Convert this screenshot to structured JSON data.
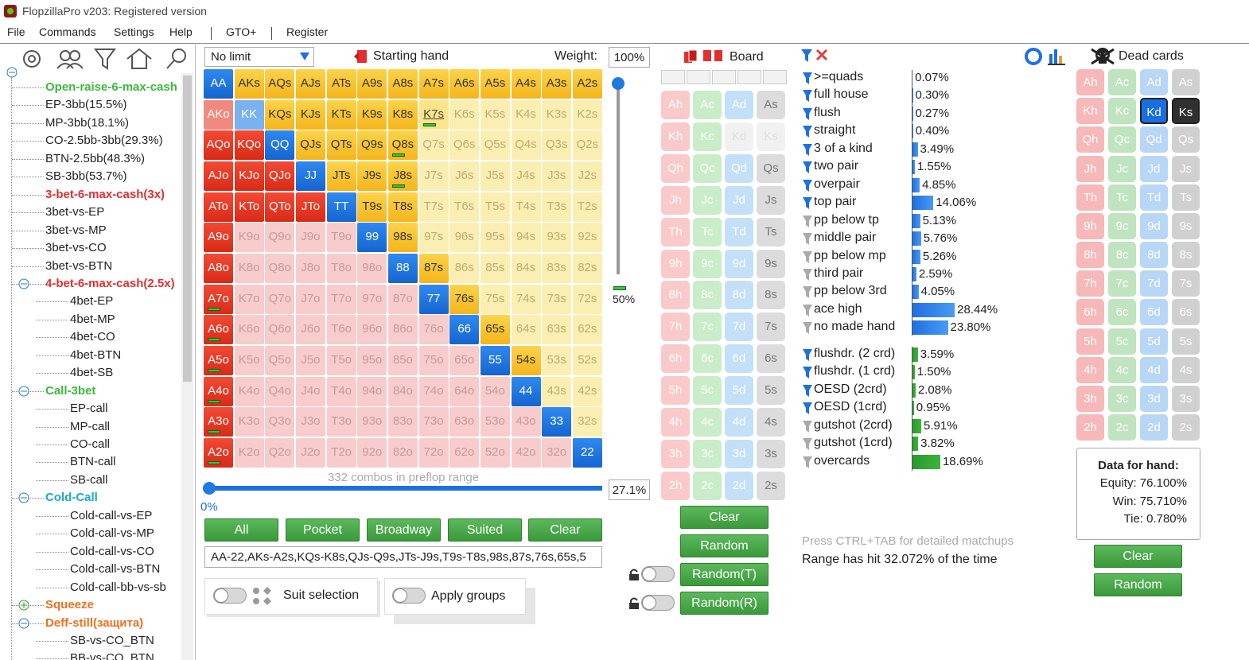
{
  "window": {
    "title": "FlopzillaPro v203: Registered version"
  },
  "menu": [
    "File",
    "Commands",
    "Settings",
    "Help",
    "GTO+",
    "Register"
  ],
  "tree": {
    "items": [
      {
        "label": "Open-raise-6-max-cash",
        "level": 1,
        "color": "#3cb93c",
        "bold": true,
        "expander": null
      },
      {
        "label": "EP-3bb(15.5%)",
        "level": 1,
        "color": "#222222",
        "bold": false,
        "expander": null
      },
      {
        "label": "MP-3bb(18.1%)",
        "level": 1,
        "color": "#222222",
        "bold": false,
        "expander": null
      },
      {
        "label": "CO-2.5bb-3bb(29.3%)",
        "level": 1,
        "color": "#222222",
        "bold": false,
        "expander": null
      },
      {
        "label": "BTN-2.5bb(48.3%)",
        "level": 1,
        "color": "#222222",
        "bold": false,
        "expander": null
      },
      {
        "label": "SB-3bb(53.7%)",
        "level": 1,
        "color": "#222222",
        "bold": false,
        "expander": null
      },
      {
        "label": "3-bet-6-max-cash(3x)",
        "level": 1,
        "color": "#e03030",
        "bold": true,
        "expander": null
      },
      {
        "label": "3bet-vs-EP",
        "level": 1,
        "color": "#222222",
        "bold": false,
        "expander": null
      },
      {
        "label": "3bet-vs-MP",
        "level": 1,
        "color": "#222222",
        "bold": false,
        "expander": null
      },
      {
        "label": "3bet-vs-CO",
        "level": 1,
        "color": "#222222",
        "bold": false,
        "expander": null
      },
      {
        "label": "3bet-vs-BTN",
        "level": 1,
        "color": "#222222",
        "bold": false,
        "expander": null
      },
      {
        "label": "4-bet-6-max-cash(2.5x)",
        "level": 1,
        "color": "#e03030",
        "bold": true,
        "expander": "minus"
      },
      {
        "label": "4bet-EP",
        "level": 2,
        "color": "#222222",
        "bold": false,
        "expander": null
      },
      {
        "label": "4bet-MP",
        "level": 2,
        "color": "#222222",
        "bold": false,
        "expander": null
      },
      {
        "label": "4bet-CO",
        "level": 2,
        "color": "#222222",
        "bold": false,
        "expander": null
      },
      {
        "label": "4bet-BTN",
        "level": 2,
        "color": "#222222",
        "bold": false,
        "expander": null
      },
      {
        "label": "4bet-SB",
        "level": 2,
        "color": "#222222",
        "bold": false,
        "expander": null
      },
      {
        "label": "Call-3bet",
        "level": 1,
        "color": "#3cb93c",
        "bold": true,
        "expander": "minus"
      },
      {
        "label": "EP-call",
        "level": 2,
        "color": "#222222",
        "bold": false,
        "expander": null
      },
      {
        "label": "MP-call",
        "level": 2,
        "color": "#222222",
        "bold": false,
        "expander": null
      },
      {
        "label": "CO-call",
        "level": 2,
        "color": "#222222",
        "bold": false,
        "expander": null
      },
      {
        "label": "BTN-call",
        "level": 2,
        "color": "#222222",
        "bold": false,
        "expander": null
      },
      {
        "label": "SB-call",
        "level": 2,
        "color": "#222222",
        "bold": false,
        "expander": null
      },
      {
        "label": "Cold-Call",
        "level": 1,
        "color": "#1ea6d0",
        "bold": true,
        "expander": "minus"
      },
      {
        "label": "Cold-call-vs-EP",
        "level": 2,
        "color": "#222222",
        "bold": false,
        "expander": null
      },
      {
        "label": "Cold-call-vs-MP",
        "level": 2,
        "color": "#222222",
        "bold": false,
        "expander": null
      },
      {
        "label": "Cold-call-vs-CO",
        "level": 2,
        "color": "#222222",
        "bold": false,
        "expander": null
      },
      {
        "label": "Cold-call-vs-BTN",
        "level": 2,
        "color": "#222222",
        "bold": false,
        "expander": null
      },
      {
        "label": "Cold-call-bb-vs-sb",
        "level": 2,
        "color": "#222222",
        "bold": false,
        "expander": null
      },
      {
        "label": "Squeeze",
        "level": 1,
        "color": "#f07020",
        "bold": true,
        "expander": "plus"
      },
      {
        "label": "Deff-still(защита)",
        "level": 1,
        "color": "#f07020",
        "bold": true,
        "expander": "minus"
      },
      {
        "label": "SB-vs-CO_BTN",
        "level": 2,
        "color": "#222222",
        "bold": false,
        "expander": null
      },
      {
        "label": "BB-vs-CO_BTN",
        "level": 2,
        "color": "#222222",
        "bold": false,
        "expander": null
      }
    ]
  },
  "range_panel": {
    "game": "No limit",
    "title": "Starting hand",
    "weight_label": "Weight:",
    "weight": "100%",
    "slider_value": "50%",
    "combos": "332 combos in preflop range",
    "min": "0%",
    "percent": "27.1%",
    "buttons": [
      "All",
      "Pocket",
      "Broadway",
      "Suited",
      "Clear"
    ],
    "range_text": "AA-22,AKs-A2s,KQs-K8s,QJs-Q9s,JTs-J9s,T9s-T8s,98s,87s,76s,65s,5",
    "toggles": [
      "Suit selection",
      "Apply groups"
    ]
  },
  "hand_grid": {
    "hands": [
      [
        "AA",
        "AKs",
        "AQs",
        "AJs",
        "ATs",
        "A9s",
        "A8s",
        "A7s",
        "A6s",
        "A5s",
        "A4s",
        "A3s",
        "A2s"
      ],
      [
        "AKo",
        "KK",
        "KQs",
        "KJs",
        "KTs",
        "K9s",
        "K8s",
        "K7s",
        "K6s",
        "K5s",
        "K4s",
        "K3s",
        "K2s"
      ],
      [
        "AQo",
        "KQo",
        "QQ",
        "QJs",
        "QTs",
        "Q9s",
        "Q8s",
        "Q7s",
        "Q6s",
        "Q5s",
        "Q4s",
        "Q3s",
        "Q2s"
      ],
      [
        "AJo",
        "KJo",
        "QJo",
        "JJ",
        "JTs",
        "J9s",
        "J8s",
        "J7s",
        "J6s",
        "J5s",
        "J4s",
        "J3s",
        "J2s"
      ],
      [
        "ATo",
        "KTo",
        "QTo",
        "JTo",
        "TT",
        "T9s",
        "T8s",
        "T7s",
        "T6s",
        "T5s",
        "T4s",
        "T3s",
        "T2s"
      ],
      [
        "A9o",
        "K9o",
        "Q9o",
        "J9o",
        "T9o",
        "99",
        "98s",
        "97s",
        "96s",
        "95s",
        "94s",
        "93s",
        "92s"
      ],
      [
        "A8o",
        "K8o",
        "Q8o",
        "J8o",
        "T8o",
        "98o",
        "88",
        "87s",
        "86s",
        "85s",
        "84s",
        "83s",
        "82s"
      ],
      [
        "A7o",
        "K7o",
        "Q7o",
        "J7o",
        "T7o",
        "97o",
        "87o",
        "77",
        "76s",
        "75s",
        "74s",
        "73s",
        "72s"
      ],
      [
        "A6o",
        "K6o",
        "Q6o",
        "J6o",
        "T6o",
        "96o",
        "86o",
        "76o",
        "66",
        "65s",
        "64s",
        "63s",
        "62s"
      ],
      [
        "A5o",
        "K5o",
        "Q5o",
        "J5o",
        "T5o",
        "95o",
        "85o",
        "75o",
        "65o",
        "55",
        "54s",
        "53s",
        "52s"
      ],
      [
        "A4o",
        "K4o",
        "Q4o",
        "J4o",
        "T4o",
        "94o",
        "84o",
        "74o",
        "64o",
        "54o",
        "44",
        "43s",
        "42s"
      ],
      [
        "A3o",
        "K3o",
        "Q3o",
        "J3o",
        "T3o",
        "93o",
        "83o",
        "73o",
        "63o",
        "53o",
        "43o",
        "33",
        "32s"
      ],
      [
        "A2o",
        "K2o",
        "Q2o",
        "J2o",
        "T2o",
        "92o",
        "82o",
        "72o",
        "62o",
        "52o",
        "42o",
        "32o",
        "22"
      ]
    ],
    "state": [
      [
        2,
        2,
        2,
        2,
        2,
        2,
        2,
        2,
        2,
        2,
        2,
        2,
        2
      ],
      [
        1,
        1,
        2,
        2,
        2,
        2,
        2,
        1,
        0,
        0,
        0,
        0,
        0
      ],
      [
        2,
        2,
        2,
        2,
        2,
        2,
        2,
        0,
        0,
        0,
        0,
        0,
        0
      ],
      [
        2,
        2,
        2,
        2,
        2,
        2,
        2,
        0,
        0,
        0,
        0,
        0,
        0
      ],
      [
        2,
        2,
        2,
        2,
        2,
        2,
        2,
        0,
        0,
        0,
        0,
        0,
        0
      ],
      [
        2,
        0,
        0,
        0,
        0,
        2,
        2,
        0,
        0,
        0,
        0,
        0,
        0
      ],
      [
        2,
        0,
        0,
        0,
        0,
        0,
        2,
        2,
        0,
        0,
        0,
        0,
        0
      ],
      [
        2,
        0,
        0,
        0,
        0,
        0,
        0,
        2,
        2,
        0,
        0,
        0,
        0
      ],
      [
        2,
        0,
        0,
        0,
        0,
        0,
        0,
        0,
        2,
        2,
        0,
        0,
        0
      ],
      [
        2,
        0,
        0,
        0,
        0,
        0,
        0,
        0,
        0,
        2,
        2,
        0,
        0
      ],
      [
        2,
        0,
        0,
        0,
        0,
        0,
        0,
        0,
        0,
        0,
        2,
        0,
        0
      ],
      [
        2,
        0,
        0,
        0,
        0,
        0,
        0,
        0,
        0,
        0,
        0,
        2,
        0
      ],
      [
        2,
        0,
        0,
        0,
        0,
        0,
        0,
        0,
        0,
        0,
        0,
        0,
        2
      ]
    ],
    "flagged": [
      "K7s",
      "Q8s",
      "J8s",
      "A7o",
      "A6o",
      "A5o",
      "A4o",
      "A3o",
      "A2o"
    ]
  },
  "board": {
    "title": "Board",
    "cards": [
      [
        "Ah",
        "Ac",
        "Ad",
        "As"
      ],
      [
        "Kh",
        "Kc",
        "Kd",
        "Ks"
      ],
      [
        "Qh",
        "Qc",
        "Qd",
        "Qs"
      ],
      [
        "Jh",
        "Jc",
        "Jd",
        "Js"
      ],
      [
        "Th",
        "Tc",
        "Td",
        "Ts"
      ],
      [
        "9h",
        "9c",
        "9d",
        "9s"
      ],
      [
        "8h",
        "8c",
        "8d",
        "8s"
      ],
      [
        "7h",
        "7c",
        "7d",
        "7s"
      ],
      [
        "6h",
        "6c",
        "6d",
        "6s"
      ],
      [
        "5h",
        "5c",
        "5d",
        "5s"
      ],
      [
        "4h",
        "4c",
        "4d",
        "4s"
      ],
      [
        "3h",
        "3c",
        "3d",
        "3s"
      ],
      [
        "2h",
        "2c",
        "2d",
        "2s"
      ]
    ],
    "unavailable": [
      "Kd",
      "Ks"
    ],
    "buttons": [
      "Clear",
      "Random",
      "Random(T)",
      "Random(R)"
    ]
  },
  "stats": {
    "made": {
      "names": [
        ">=quads",
        "full house",
        "flush",
        "straight",
        "3 of a kind",
        "two pair",
        "overpair",
        "top pair",
        "pp below tp",
        "middle pair",
        "pp below mp",
        "third pair",
        "pp below 3rd",
        "ace high",
        "no made hand"
      ],
      "values": [
        0.07,
        0.3,
        0.27,
        0.4,
        3.49,
        1.55,
        4.85,
        14.06,
        5.13,
        5.76,
        5.26,
        2.59,
        4.05,
        28.44,
        23.8
      ],
      "value_labels": [
        "0.07%",
        "0.30%",
        "0.27%",
        "0.40%",
        "3.49%",
        "1.55%",
        "4.85%",
        "14.06%",
        "5.13%",
        "5.76%",
        "5.26%",
        "2.59%",
        "4.05%",
        "28.44%",
        "23.80%"
      ],
      "filter_active": [
        true,
        true,
        true,
        true,
        true,
        true,
        true,
        true,
        false,
        false,
        false,
        false,
        false,
        false,
        false
      ],
      "color": "#1f6fe0"
    },
    "draws": {
      "names": [
        "flushdr. (2 crd)",
        "flushdr. (1 crd)",
        "OESD (2crd)",
        "OESD (1crd)",
        "gutshot (2crd)",
        "gutshot (1crd)",
        "overcards"
      ],
      "values": [
        3.59,
        1.5,
        2.08,
        0.95,
        5.91,
        3.82,
        18.69
      ],
      "value_labels": [
        "3.59%",
        "1.50%",
        "2.08%",
        "0.95%",
        "5.91%",
        "3.82%",
        "18.69%"
      ],
      "filter_active": [
        true,
        true,
        true,
        true,
        false,
        false,
        false
      ],
      "color": "#2a9a2a"
    },
    "hint": "Press CTRL+TAB for detailed matchups",
    "summary": "Range has hit 32.072% of the time"
  },
  "dead_cards": {
    "title": "Dead cards",
    "cards": [
      [
        "Ah",
        "Ac",
        "Ad",
        "As"
      ],
      [
        "Kh",
        "Kc",
        "Kd",
        "Ks"
      ],
      [
        "Qh",
        "Qc",
        "Qd",
        "Qs"
      ],
      [
        "Jh",
        "Jc",
        "Jd",
        "Js"
      ],
      [
        "Th",
        "Tc",
        "Td",
        "Ts"
      ],
      [
        "9h",
        "9c",
        "9d",
        "9s"
      ],
      [
        "8h",
        "8c",
        "8d",
        "8s"
      ],
      [
        "7h",
        "7c",
        "7d",
        "7s"
      ],
      [
        "6h",
        "6c",
        "6d",
        "6s"
      ],
      [
        "5h",
        "5c",
        "5d",
        "5s"
      ],
      [
        "4h",
        "4c",
        "4d",
        "4s"
      ],
      [
        "3h",
        "3c",
        "3d",
        "3s"
      ],
      [
        "2h",
        "2c",
        "2d",
        "2s"
      ]
    ],
    "selected": [
      "Kd",
      "Ks"
    ],
    "data_title": "Data for hand:",
    "lines": [
      "Equity: 76.100%",
      "Win: 75.710%",
      "Tie: 0.780%"
    ],
    "buttons": [
      "Clear",
      "Random"
    ]
  }
}
